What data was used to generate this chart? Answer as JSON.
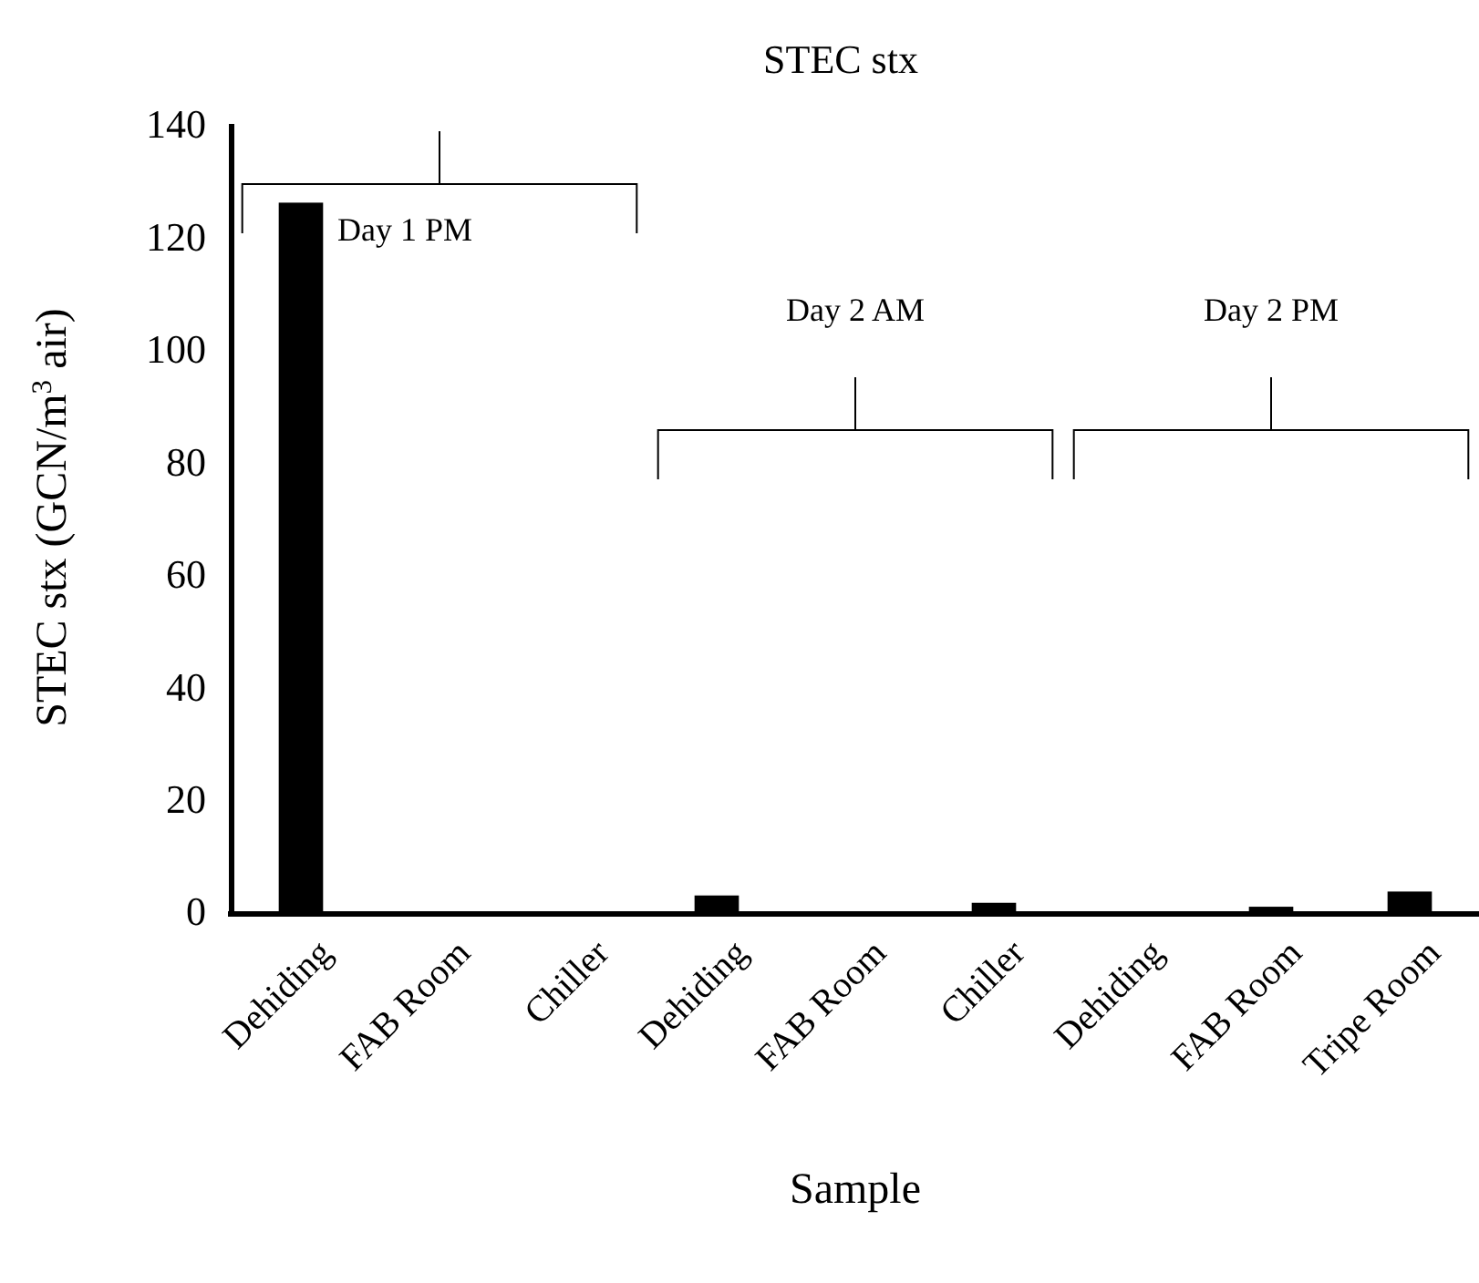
{
  "chart_data": {
    "type": "bar",
    "title": "STEC stx",
    "xlabel": "Sample",
    "ylabel": "STEC stx (GCN/m$^{3}$ air)",
    "categories": [
      "Dehiding",
      "FAB Room",
      "Chiller",
      "Dehiding",
      "FAB Room",
      "Chiller",
      "Dehiding",
      "FAB Room",
      "Tripe Room"
    ],
    "values": [
      126,
      0,
      0,
      2.8,
      0,
      1.5,
      0,
      0.8,
      3.5
    ],
    "color": "#000000",
    "ylim": [
      0,
      140
    ],
    "yticks": [
      0,
      20,
      40,
      60,
      80,
      100,
      120,
      140
    ],
    "grid": false,
    "annotations": [
      "Day 1 PM",
      "Day 2 AM",
      "Day 2 PM"
    ]
  }
}
